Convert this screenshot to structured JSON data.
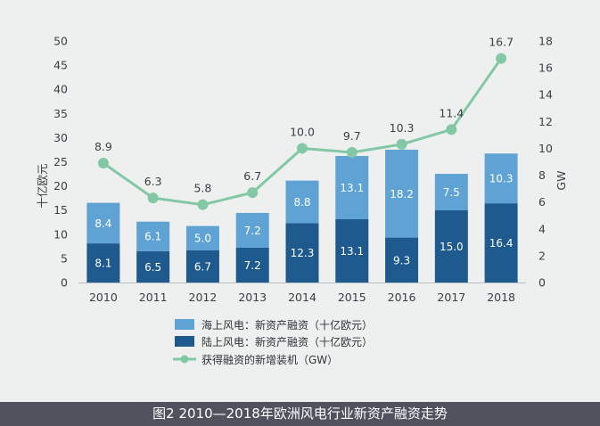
{
  "caption": "图2 2010—2018年欧洲风电行业新资产融资走势",
  "chart_data": {
    "type": "bar",
    "stacked": true,
    "categories": [
      "2010",
      "2011",
      "2012",
      "2013",
      "2014",
      "2015",
      "2016",
      "2017",
      "2018"
    ],
    "series": [
      {
        "name": "陆上风电：新资产融资（十亿欧元）",
        "values": [
          8.1,
          6.5,
          6.7,
          7.2,
          12.3,
          13.1,
          9.3,
          15.0,
          16.4
        ],
        "labels": [
          "8.1",
          "6.5",
          "6.7",
          "7.2",
          "12.3",
          "13.1",
          "9.3",
          "15.0",
          "16.4"
        ],
        "color": "#1f5a8e"
      },
      {
        "name": "海上风电：新资产融资（十亿欧元）",
        "values": [
          8.4,
          6.1,
          5.0,
          7.2,
          8.8,
          13.1,
          18.2,
          7.5,
          10.3
        ],
        "labels": [
          "8.4",
          "6.1",
          "5.0",
          "7.2",
          "8.8",
          "13.1",
          "18.2",
          "7.5",
          "10.3"
        ],
        "color": "#5fa3d4"
      },
      {
        "name": "获得融资的新增装机（GW）",
        "type": "line",
        "axis": "right",
        "values": [
          8.9,
          6.3,
          5.8,
          6.7,
          10.0,
          9.7,
          10.3,
          11.4,
          16.7
        ],
        "labels": [
          "8.9",
          "6.3",
          "5.8",
          "6.7",
          "10.0",
          "9.7",
          "10.3",
          "11.4",
          "16.7"
        ],
        "color": "#82c8a5"
      }
    ],
    "ylabel": "十亿欧元",
    "y2label": "GW",
    "ylim": [
      0,
      50
    ],
    "y2lim": [
      0,
      18
    ],
    "yticks": [
      "0",
      "5",
      "10",
      "15",
      "20",
      "25",
      "30",
      "35",
      "40",
      "45",
      "50"
    ],
    "y2ticks": [
      "0",
      "2",
      "4",
      "6",
      "8",
      "10",
      "12",
      "14",
      "16",
      "18"
    ],
    "grid": false,
    "legend_position": "bottom"
  }
}
